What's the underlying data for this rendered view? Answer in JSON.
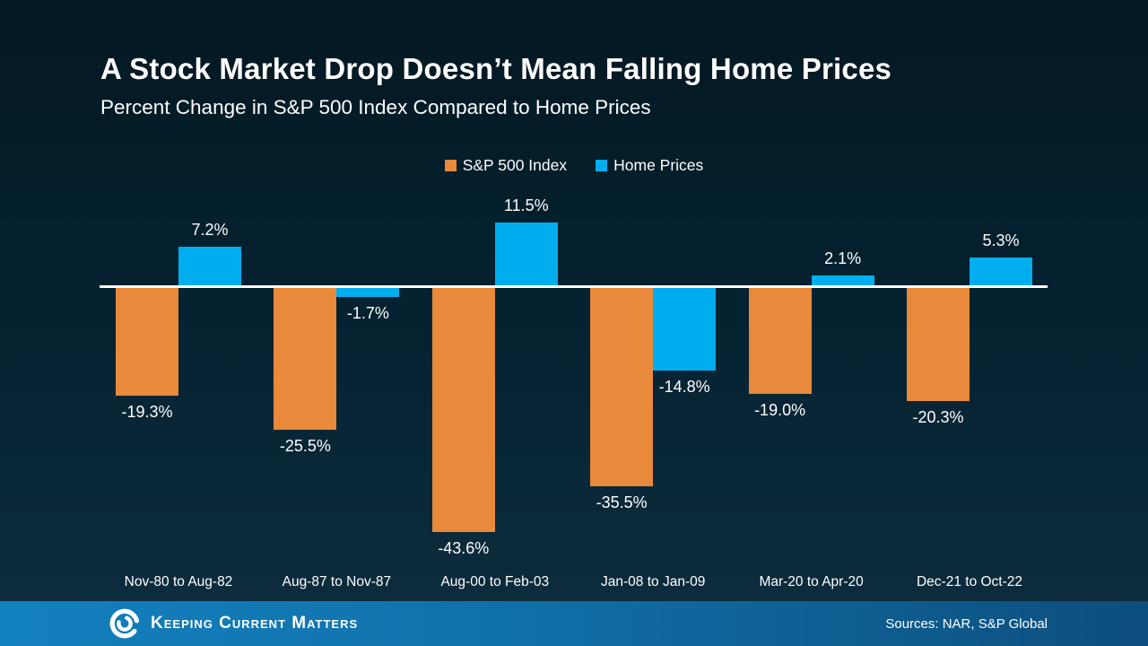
{
  "slide": {
    "title": "A Stock Market Drop Doesn’t Mean Falling Home Prices",
    "subtitle": "Percent Change in S&P 500 Index Compared to Home Prices"
  },
  "colors": {
    "sp500_orange": "#E8893B",
    "home_prices_blue": "#00AEEF",
    "baseline": "#FFFFFF",
    "background_top": "#031822",
    "background_bottom": "#0D2D3E",
    "footer_blue_left": "#1380BE",
    "footer_blue_right": "#0C4E7D",
    "text": "#FFFFFF"
  },
  "legend": {
    "items": [
      {
        "label": "S&P 500 Index",
        "color": "#E8893B"
      },
      {
        "label": "Home Prices",
        "color": "#00AEEF"
      }
    ]
  },
  "chart_data": {
    "type": "bar",
    "title": "A Stock Market Drop Doesn’t Mean Falling Home Prices",
    "subtitle": "Percent Change in S&P 500 Index Compared to Home Prices",
    "categories": [
      "Nov-80 to Aug-82",
      "Aug-87 to Nov-87",
      "Aug-00 to Feb-03",
      "Jan-08 to Jan-09",
      "Mar-20 to Apr-20",
      "Dec-21 to Oct-22"
    ],
    "series": [
      {
        "name": "S&P 500 Index",
        "color": "#E8893B",
        "values": [
          -19.3,
          -25.5,
          -43.6,
          -35.5,
          -19.0,
          -20.3
        ]
      },
      {
        "name": "Home Prices",
        "color": "#00AEEF",
        "values": [
          7.2,
          -1.7,
          11.5,
          -14.8,
          2.1,
          5.3
        ]
      }
    ],
    "value_label_suffix": "%",
    "baseline_value": 0,
    "ylim": [
      -50,
      15
    ],
    "grid": false,
    "legend_position": "top-center",
    "xlabel": "",
    "ylabel": ""
  },
  "footer": {
    "brand": "Keeping Current Matters",
    "sources": "Sources: NAR, S&P Global"
  }
}
